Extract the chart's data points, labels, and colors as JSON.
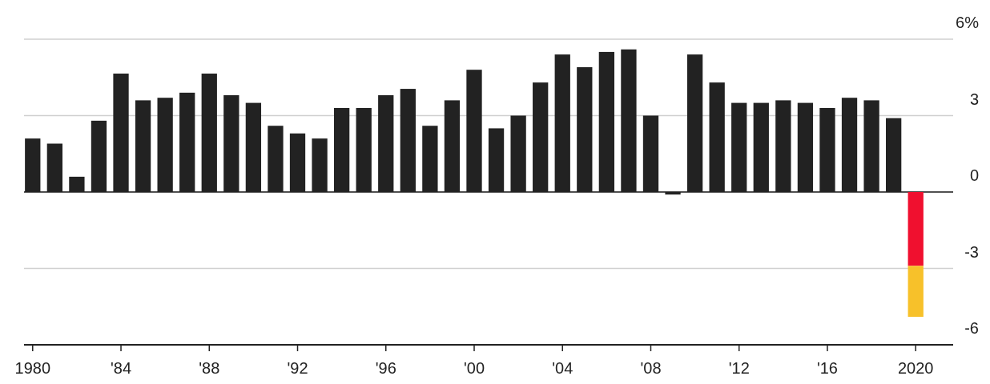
{
  "chart_data": {
    "type": "bar",
    "stacked": true,
    "grid": "y",
    "categories": [
      "1980",
      null,
      null,
      null,
      "'84",
      null,
      null,
      null,
      "'88",
      null,
      null,
      null,
      "'92",
      null,
      null,
      null,
      "'96",
      null,
      null,
      null,
      "'00",
      null,
      null,
      null,
      "'04",
      null,
      null,
      null,
      "'08",
      null,
      null,
      null,
      "'12",
      null,
      null,
      null,
      "'16",
      null,
      null,
      null,
      "2020"
    ],
    "series": [
      {
        "colors": [
          "#222222",
          "#222222",
          "#222222",
          "#222222",
          "#222222",
          "#222222",
          "#222222",
          "#222222",
          "#222222",
          "#222222",
          "#222222",
          "#222222",
          "#222222",
          "#222222",
          "#222222",
          "#222222",
          "#222222",
          "#222222",
          "#222222",
          "#222222",
          "#222222",
          "#222222",
          "#222222",
          "#222222",
          "#222222",
          "#222222",
          "#222222",
          "#222222",
          "#222222",
          "#222222",
          "#222222",
          "#222222",
          "#222222",
          "#222222",
          "#222222",
          "#222222",
          "#222222",
          "#222222",
          "#222222",
          "#222222",
          "#f0102f"
        ],
        "values": [
          2.1,
          1.9,
          0.6,
          2.8,
          4.65,
          3.6,
          3.7,
          3.9,
          4.65,
          3.8,
          3.5,
          2.6,
          2.3,
          2.1,
          3.3,
          3.3,
          3.8,
          4.05,
          2.6,
          3.6,
          4.8,
          2.5,
          3.0,
          4.3,
          5.4,
          4.9,
          5.5,
          5.6,
          3.0,
          -0.1,
          5.4,
          4.3,
          3.5,
          3.5,
          3.6,
          3.5,
          3.3,
          3.7,
          3.6,
          2.9,
          -2.9
        ]
      },
      {
        "color": "#f7c12a",
        "values": [
          null,
          null,
          null,
          null,
          null,
          null,
          null,
          null,
          null,
          null,
          null,
          null,
          null,
          null,
          null,
          null,
          null,
          null,
          null,
          null,
          null,
          null,
          null,
          null,
          null,
          null,
          null,
          null,
          null,
          null,
          null,
          null,
          null,
          null,
          null,
          null,
          null,
          null,
          null,
          null,
          -2.0
        ]
      }
    ],
    "ylim": [
      -6,
      6
    ],
    "yticks": [
      -6,
      -3,
      0,
      3,
      {
        "value": 6,
        "label": "6%"
      }
    ]
  }
}
